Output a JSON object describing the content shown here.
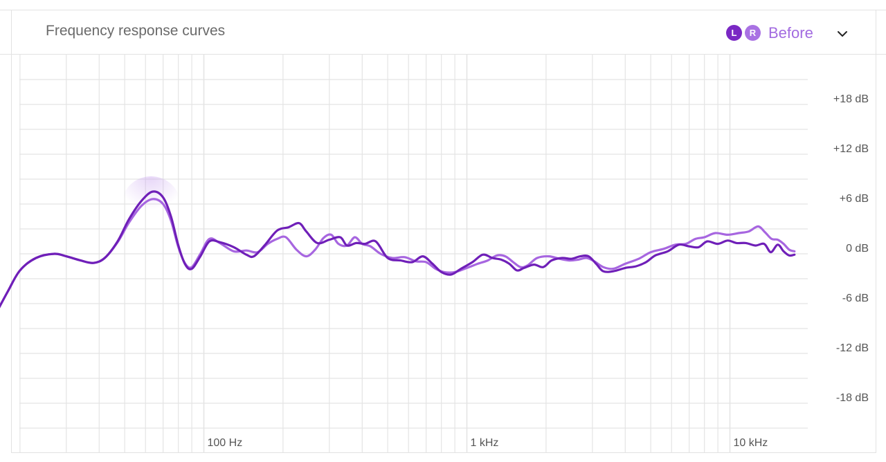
{
  "header": {
    "title": "Frequency response curves",
    "channel_left_label": "L",
    "channel_right_label": "R",
    "state_label": "Before"
  },
  "colors": {
    "left_series": "#6f1fb8",
    "right_series": "#a766e0",
    "grid": "#e4e4e4"
  },
  "icons": {
    "dropdown": "chevron-down-icon"
  },
  "chart_data": {
    "type": "line",
    "title": "Frequency response curves",
    "xscale": "log",
    "xlim": [
      10,
      20000
    ],
    "ylim": [
      -24,
      24
    ],
    "grid": true,
    "x_ticks": [
      {
        "value": 100,
        "label": "100 Hz"
      },
      {
        "value": 1000,
        "label": "1 kHz"
      },
      {
        "value": 10000,
        "label": "10 kHz"
      }
    ],
    "y_ticks": [
      {
        "value": 18,
        "label": "+18 dB"
      },
      {
        "value": 12,
        "label": "+12 dB"
      },
      {
        "value": 6,
        "label": "+6 dB"
      },
      {
        "value": 0,
        "label": "0 dB"
      },
      {
        "value": -6,
        "label": "-6 dB"
      },
      {
        "value": -12,
        "label": "-12 dB"
      },
      {
        "value": -18,
        "label": "-18 dB"
      }
    ],
    "series": [
      {
        "name": "L",
        "points": [
          [
            16,
            -7.5
          ],
          [
            18,
            -4.5
          ],
          [
            20,
            -2
          ],
          [
            23,
            -0.5
          ],
          [
            27,
            0
          ],
          [
            30,
            -0.3
          ],
          [
            34,
            -0.8
          ],
          [
            38,
            -1.1
          ],
          [
            42,
            -0.5
          ],
          [
            47,
            1.5
          ],
          [
            52,
            4.2
          ],
          [
            58,
            6.4
          ],
          [
            64,
            7.5
          ],
          [
            70,
            6.8
          ],
          [
            75,
            4.5
          ],
          [
            80,
            1
          ],
          [
            85,
            -1.3
          ],
          [
            90,
            -1.8
          ],
          [
            97,
            -0.3
          ],
          [
            105,
            1.5
          ],
          [
            115,
            1.4
          ],
          [
            130,
            0.8
          ],
          [
            145,
            -0.1
          ],
          [
            155,
            -0.3
          ],
          [
            170,
            1
          ],
          [
            190,
            2.8
          ],
          [
            210,
            3.2
          ],
          [
            230,
            3.7
          ],
          [
            245,
            2.7
          ],
          [
            270,
            1.3
          ],
          [
            300,
            1.7
          ],
          [
            330,
            2
          ],
          [
            350,
            1
          ],
          [
            380,
            1.3
          ],
          [
            410,
            1.2
          ],
          [
            450,
            1.5
          ],
          [
            500,
            -0.5
          ],
          [
            560,
            -0.8
          ],
          [
            620,
            -1
          ],
          [
            680,
            -0.3
          ],
          [
            740,
            -1.2
          ],
          [
            800,
            -2.2
          ],
          [
            870,
            -2.5
          ],
          [
            950,
            -1.8
          ],
          [
            1050,
            -1
          ],
          [
            1150,
            -0.1
          ],
          [
            1250,
            -0.5
          ],
          [
            1350,
            -0.7
          ],
          [
            1450,
            -1.2
          ],
          [
            1550,
            -2
          ],
          [
            1650,
            -1.7
          ],
          [
            1800,
            -1.3
          ],
          [
            1950,
            -1.6
          ],
          [
            2100,
            -0.8
          ],
          [
            2300,
            -0.5
          ],
          [
            2500,
            -0.6
          ],
          [
            2700,
            -0.3
          ],
          [
            2900,
            -0.3
          ],
          [
            3100,
            -1.2
          ],
          [
            3300,
            -2.1
          ],
          [
            3600,
            -2.1
          ],
          [
            4000,
            -1.7
          ],
          [
            4400,
            -1.5
          ],
          [
            4800,
            -1
          ],
          [
            5200,
            -0.2
          ],
          [
            5800,
            0.3
          ],
          [
            6400,
            1.1
          ],
          [
            7000,
            0.9
          ],
          [
            7600,
            0.8
          ],
          [
            8200,
            1.5
          ],
          [
            9000,
            1.2
          ],
          [
            9800,
            1.6
          ],
          [
            10600,
            1.3
          ],
          [
            11500,
            1.3
          ],
          [
            12500,
            1
          ],
          [
            13500,
            1.2
          ],
          [
            14300,
            0.2
          ],
          [
            15200,
            1.1
          ],
          [
            16000,
            0.3
          ],
          [
            16800,
            -0.2
          ],
          [
            17600,
            -0.1
          ]
        ]
      },
      {
        "name": "R",
        "points": [
          [
            16,
            -7.5
          ],
          [
            18,
            -4.5
          ],
          [
            20,
            -2
          ],
          [
            23,
            -0.5
          ],
          [
            27,
            0
          ],
          [
            30,
            -0.3
          ],
          [
            34,
            -0.8
          ],
          [
            38,
            -1.1
          ],
          [
            42,
            -0.5
          ],
          [
            47,
            1.4
          ],
          [
            52,
            3.8
          ],
          [
            58,
            5.8
          ],
          [
            64,
            6.6
          ],
          [
            70,
            6
          ],
          [
            75,
            4
          ],
          [
            80,
            0.8
          ],
          [
            85,
            -1.2
          ],
          [
            90,
            -1.6
          ],
          [
            97,
            0
          ],
          [
            105,
            1.8
          ],
          [
            115,
            1.3
          ],
          [
            130,
            0.3
          ],
          [
            145,
            0.4
          ],
          [
            160,
            0.2
          ],
          [
            175,
            1.2
          ],
          [
            190,
            1.8
          ],
          [
            205,
            2
          ],
          [
            225,
            0.5
          ],
          [
            245,
            -0.3
          ],
          [
            265,
            0.5
          ],
          [
            285,
            1.9
          ],
          [
            305,
            2.3
          ],
          [
            325,
            1.2
          ],
          [
            350,
            1
          ],
          [
            375,
            2
          ],
          [
            400,
            1.2
          ],
          [
            430,
            0.9
          ],
          [
            470,
            0
          ],
          [
            520,
            -0.5
          ],
          [
            580,
            -0.4
          ],
          [
            640,
            -0.9
          ],
          [
            700,
            -1
          ],
          [
            760,
            -1.8
          ],
          [
            820,
            -2.2
          ],
          [
            900,
            -2.2
          ],
          [
            1000,
            -1.7
          ],
          [
            1100,
            -1.2
          ],
          [
            1200,
            -0.8
          ],
          [
            1300,
            -0.2
          ],
          [
            1400,
            -0.3
          ],
          [
            1500,
            -1
          ],
          [
            1600,
            -1.6
          ],
          [
            1700,
            -1.4
          ],
          [
            1850,
            -0.5
          ],
          [
            2050,
            -0.3
          ],
          [
            2250,
            -0.6
          ],
          [
            2450,
            -0.8
          ],
          [
            2650,
            -0.7
          ],
          [
            2850,
            -0.5
          ],
          [
            3050,
            -0.9
          ],
          [
            3300,
            -1.6
          ],
          [
            3600,
            -1.8
          ],
          [
            4000,
            -1.2
          ],
          [
            4500,
            -0.6
          ],
          [
            5000,
            0.2
          ],
          [
            5600,
            0.6
          ],
          [
            6200,
            1.1
          ],
          [
            6800,
            1.2
          ],
          [
            7400,
            1.8
          ],
          [
            8000,
            2
          ],
          [
            8800,
            2.5
          ],
          [
            9800,
            2.3
          ],
          [
            10800,
            2.5
          ],
          [
            11800,
            2.7
          ],
          [
            12800,
            3.3
          ],
          [
            13600,
            2.6
          ],
          [
            14400,
            1.8
          ],
          [
            15200,
            1.7
          ],
          [
            16000,
            1.2
          ],
          [
            16800,
            0.5
          ],
          [
            17600,
            0.3
          ]
        ]
      }
    ]
  }
}
